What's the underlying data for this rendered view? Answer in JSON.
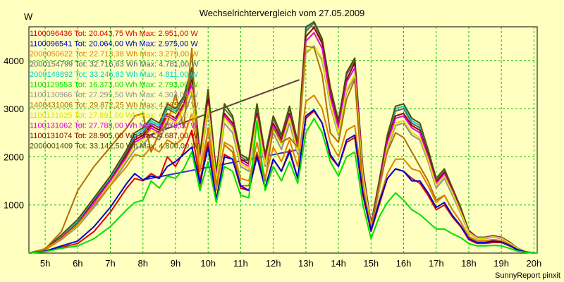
{
  "chart_data": {
    "type": "line",
    "title": "Wechselrichtervergleich vom 27.05.2009",
    "ylabel": "W",
    "xlabel": "",
    "footer": "SunnyReport pinxit",
    "grid": true,
    "legend_position": "top-left, inside plot area",
    "ylim": [
      0,
      4700
    ],
    "xlim": [
      4.5,
      20.1
    ],
    "y_ticks": [
      1000,
      2000,
      3000,
      4000
    ],
    "x_ticks": [
      "5h",
      "6h",
      "7h",
      "8h",
      "9h",
      "10h",
      "11h",
      "12h",
      "13h",
      "14h",
      "15h",
      "16h",
      "17h",
      "18h",
      "19h",
      "20h"
    ],
    "x_tick_hours": [
      5,
      6,
      7,
      8,
      9,
      10,
      11,
      12,
      13,
      14,
      15,
      16,
      17,
      18,
      19,
      20
    ],
    "x": [
      4.5,
      5.0,
      5.5,
      6.0,
      6.5,
      7.0,
      7.5,
      7.75,
      8.0,
      8.25,
      8.5,
      8.75,
      9.0,
      9.25,
      9.5,
      9.75,
      10.0,
      10.25,
      10.5,
      10.75,
      11.0,
      11.25,
      11.5,
      11.75,
      12.0,
      12.25,
      12.5,
      12.75,
      13.0,
      13.25,
      13.5,
      13.75,
      14.0,
      14.25,
      14.5,
      14.75,
      15.0,
      15.25,
      15.5,
      15.75,
      16.0,
      16.25,
      16.5,
      16.75,
      17.0,
      17.25,
      17.5,
      17.75,
      18.0,
      18.25,
      18.5,
      18.75,
      19.0,
      19.25,
      19.5,
      19.75,
      20.0,
      20.1
    ],
    "series": [
      {
        "name": "1100096436 Tot: 20.043,75 Wh Max: 2.951,00 W",
        "color": "#e00000",
        "values": [
          0,
          40,
          120,
          200,
          450,
          850,
          1350,
          1550,
          1500,
          1650,
          1550,
          2000,
          1800,
          2100,
          2550,
          1500,
          2300,
          1100,
          2050,
          1950,
          1350,
          1300,
          2050,
          1350,
          1950,
          1700,
          2150,
          1550,
          2800,
          2950,
          2700,
          2000,
          1800,
          2300,
          2400,
          1200,
          450,
          1000,
          1550,
          1750,
          1700,
          1550,
          1450,
          1200,
          900,
          1000,
          750,
          550,
          280,
          200,
          200,
          220,
          220,
          150,
          60,
          20,
          0,
          0
        ]
      },
      {
        "name": "1100096541 Tot: 20.064,00 Wh Max: 2.975,00 W",
        "color": "#0000d0",
        "values": [
          0,
          40,
          150,
          250,
          550,
          950,
          1450,
          1650,
          1520,
          1600,
          1550,
          1800,
          1900,
          2050,
          2200,
          1450,
          2200,
          1100,
          2000,
          1950,
          1400,
          1300,
          2000,
          1350,
          1950,
          1700,
          2100,
          1550,
          2850,
          2975,
          2700,
          2050,
          1800,
          2350,
          2450,
          1250,
          470,
          1050,
          1550,
          1750,
          1700,
          1500,
          1500,
          1250,
          950,
          1050,
          780,
          570,
          300,
          220,
          220,
          250,
          230,
          160,
          70,
          20,
          0,
          0
        ]
      },
      {
        "name": "2000050622 Tot: 22.713,38 Wh Max: 3.279,00 W",
        "color": "#e08000",
        "values": [
          0,
          60,
          300,
          600,
          1000,
          1400,
          1800,
          2050,
          2000,
          2200,
          2100,
          2350,
          2250,
          2400,
          2900,
          1700,
          2550,
          1300,
          2300,
          2200,
          1550,
          1500,
          2300,
          1550,
          2200,
          1900,
          2350,
          1800,
          3150,
          3279,
          3000,
          2300,
          2000,
          2550,
          2650,
          1400,
          500,
          1100,
          1650,
          1950,
          1950,
          1750,
          1700,
          1400,
          1050,
          1200,
          900,
          650,
          350,
          260,
          260,
          280,
          260,
          180,
          80,
          25,
          0,
          0
        ]
      },
      {
        "name": "2000154799 Tot: 32.716,63 Wh Max: 4.781,00 W",
        "color": "#606060",
        "values": [
          0,
          80,
          350,
          650,
          1100,
          1550,
          2100,
          2400,
          2500,
          2700,
          2600,
          3000,
          2900,
          3200,
          3700,
          2000,
          3300,
          1600,
          3000,
          2800,
          2000,
          1900,
          3000,
          2000,
          2800,
          2400,
          3000,
          2250,
          4600,
          4781,
          4400,
          3400,
          2700,
          3700,
          4000,
          1700,
          580,
          1450,
          2400,
          2950,
          3000,
          2700,
          2600,
          2100,
          1500,
          1700,
          1300,
          900,
          450,
          320,
          320,
          350,
          320,
          220,
          100,
          30,
          0,
          0
        ]
      },
      {
        "name": "2000149892 Tot: 33.246,63 Wh Max: 4.811,00 W",
        "color": "#00d0d0",
        "values": [
          0,
          80,
          360,
          660,
          1100,
          1550,
          2150,
          2450,
          2550,
          2750,
          2650,
          3050,
          2950,
          3250,
          3800,
          2050,
          3400,
          1650,
          3100,
          2850,
          2050,
          1950,
          3100,
          2050,
          2850,
          2450,
          3050,
          2300,
          4650,
          4811,
          4450,
          3450,
          2750,
          3750,
          4050,
          1750,
          600,
          1500,
          2450,
          3000,
          3050,
          2750,
          2650,
          2150,
          1550,
          1750,
          1350,
          950,
          470,
          330,
          330,
          360,
          330,
          230,
          100,
          30,
          0,
          0
        ]
      },
      {
        "name": "1100129553 Tot: 16.373,00 Wh Max: 2.793,00 W",
        "color": "#00e000",
        "values": [
          0,
          30,
          100,
          150,
          300,
          550,
          900,
          1050,
          1100,
          1500,
          1350,
          1600,
          1550,
          1750,
          2100,
          1300,
          1900,
          1050,
          1800,
          1700,
          1200,
          1150,
          2750,
          1300,
          1800,
          1500,
          1900,
          1450,
          2500,
          2793,
          2500,
          1900,
          1600,
          2000,
          2100,
          1000,
          300,
          750,
          1050,
          1250,
          1100,
          900,
          800,
          650,
          500,
          500,
          400,
          320,
          200,
          150,
          150,
          160,
          150,
          100,
          40,
          15,
          0,
          0
        ]
      },
      {
        "name": "1100130966 Tot: 27.295,50 Wh Max: 4.303,00 W",
        "color": "#909090",
        "values": [
          0,
          70,
          280,
          550,
          950,
          1400,
          1900,
          2150,
          2250,
          2450,
          2350,
          2700,
          2600,
          2850,
          3300,
          1800,
          2950,
          1450,
          2700,
          2500,
          1800,
          1700,
          2700,
          1800,
          2500,
          2150,
          2700,
          2050,
          4150,
          4303,
          4000,
          3050,
          2450,
          3350,
          3650,
          1550,
          530,
          1300,
          2150,
          2650,
          2700,
          2450,
          2350,
          1900,
          1350,
          1550,
          1200,
          820,
          420,
          300,
          300,
          330,
          300,
          200,
          90,
          25,
          0,
          0
        ]
      },
      {
        "name": "1400431006 Tot: 29.872,25 Wh Max: 4.265,00 W",
        "color": "#b07000",
        "values": [
          0,
          90,
          450,
          1300,
          1800,
          2200,
          2600,
          2850,
          2900,
          2100,
          2500,
          2700,
          3300,
          2600,
          4250,
          1300,
          2600,
          1400,
          2250,
          2100,
          1400,
          1400,
          2100,
          1500,
          2600,
          2300,
          2400,
          2200,
          4300,
          4265,
          3700,
          2500,
          2300,
          3200,
          3600,
          1400,
          500,
          1400,
          2100,
          2500,
          2400,
          2100,
          1800,
          1500,
          1100,
          1200,
          900,
          650,
          330,
          250,
          250,
          270,
          250,
          170,
          80,
          25,
          0,
          0
        ]
      },
      {
        "name": "1100131025 Tot: 27.891,00 Wh Max: 4.277,00 W",
        "color": "#e0e000",
        "values": [
          0,
          75,
          300,
          580,
          1000,
          1450,
          1950,
          2250,
          2350,
          2550,
          2450,
          2800,
          2700,
          3000,
          3400,
          1850,
          3050,
          1500,
          2800,
          2600,
          1850,
          1750,
          2800,
          1850,
          2600,
          2250,
          2800,
          2100,
          4200,
          4277,
          4050,
          3100,
          2500,
          3400,
          3700,
          1600,
          550,
          1350,
          2200,
          2700,
          2750,
          2500,
          2400,
          1950,
          1400,
          1600,
          1250,
          850,
          430,
          310,
          310,
          340,
          310,
          210,
          95,
          28,
          0,
          0
        ]
      },
      {
        "name": "1100131062 Tot: 27.788,00 Wh Max: 4.578,00 W",
        "color": "#e000e0",
        "values": [
          0,
          75,
          310,
          600,
          1050,
          1500,
          2000,
          2300,
          2400,
          2600,
          2500,
          2850,
          2750,
          3050,
          3500,
          1900,
          3100,
          1550,
          2850,
          2650,
          1900,
          1800,
          2850,
          1900,
          2650,
          2300,
          2850,
          2150,
          4400,
          4578,
          4250,
          3250,
          2600,
          3550,
          3850,
          1650,
          560,
          1400,
          2300,
          2800,
          2850,
          2600,
          2500,
          2000,
          1450,
          1650,
          1280,
          870,
          440,
          320,
          320,
          350,
          320,
          210,
          95,
          28,
          0,
          0
        ]
      },
      {
        "name": "1100131074 Tot: 28.905,00 Wh Max: 4.687,00 W",
        "color": "#900000",
        "values": [
          0,
          78,
          320,
          620,
          1080,
          1520,
          2050,
          2350,
          2450,
          2650,
          2550,
          2900,
          2800,
          3100,
          3600,
          1950,
          3200,
          1580,
          2900,
          2700,
          1950,
          1850,
          2900,
          1950,
          2700,
          2350,
          2900,
          2200,
          4500,
          4687,
          4350,
          3320,
          2650,
          3600,
          3950,
          1680,
          570,
          1420,
          2350,
          2850,
          2900,
          2650,
          2550,
          2050,
          1480,
          1680,
          1300,
          880,
          450,
          320,
          320,
          350,
          320,
          215,
          98,
          28,
          0,
          0
        ]
      },
      {
        "name": "2000001409 Tot: 33.142,50 Wh Max: 4.800,00 W",
        "color": "#505000",
        "values": [
          0,
          85,
          380,
          700,
          1150,
          1600,
          2150,
          2500,
          2600,
          2800,
          2700,
          3100,
          3000,
          3250,
          3850,
          2050,
          3400,
          1650,
          3100,
          2850,
          2050,
          1950,
          3100,
          2050,
          2850,
          2450,
          3050,
          2300,
          4700,
          4800,
          4450,
          3450,
          2750,
          3750,
          4050,
          1750,
          600,
          1500,
          2450,
          3050,
          3100,
          2800,
          2700,
          2150,
          1550,
          1750,
          1350,
          950,
          470,
          330,
          330,
          360,
          330,
          230,
          100,
          30,
          0,
          0
        ]
      }
    ],
    "interpolation_lines": [
      {
        "color": "#3030c0",
        "points": [
          [
            8.0,
            1520
          ],
          [
            12.8,
            2150
          ]
        ]
      },
      {
        "color": "#604040",
        "points": [
          [
            8.0,
            2400
          ],
          [
            12.8,
            3600
          ]
        ]
      }
    ]
  }
}
